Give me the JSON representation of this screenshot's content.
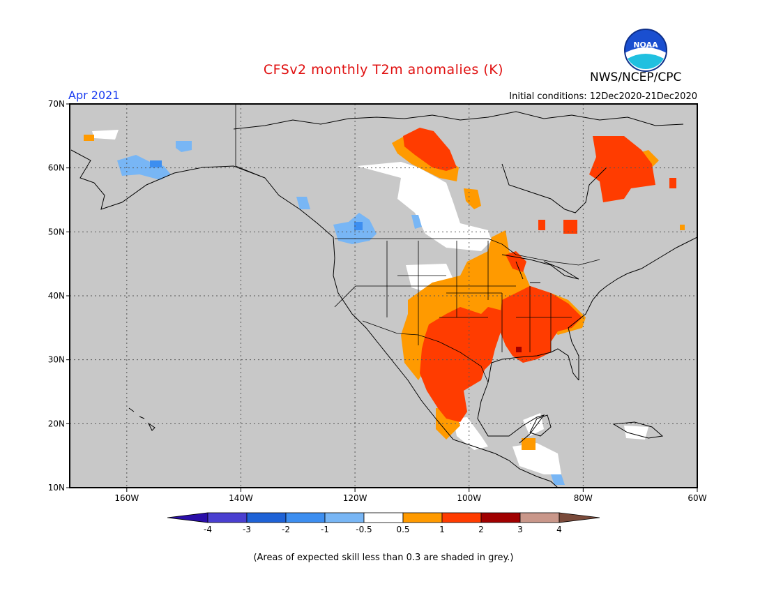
{
  "title": "CFSv2 monthly T2m anomalies (K)",
  "agency": "NWS/NCEP/CPC",
  "logo_text": "NOAA",
  "period": "Apr 2021",
  "initial_conditions": "Initial conditions: 12Dec2020-21Dec2020",
  "footnote": "(Areas of expected skill less than 0.3 are shaded in grey.)",
  "map": {
    "lon_range": [
      -170,
      -60
    ],
    "lat_range": [
      10,
      70
    ],
    "lon_ticks": [
      {
        "value": -160,
        "label": "160W"
      },
      {
        "value": -140,
        "label": "140W"
      },
      {
        "value": -120,
        "label": "120W"
      },
      {
        "value": -100,
        "label": "100W"
      },
      {
        "value": -80,
        "label": "80W"
      },
      {
        "value": -60,
        "label": "60W"
      }
    ],
    "lat_ticks": [
      {
        "value": 70,
        "label": "70N"
      },
      {
        "value": 60,
        "label": "60N"
      },
      {
        "value": 50,
        "label": "50N"
      },
      {
        "value": 40,
        "label": "40N"
      },
      {
        "value": 30,
        "label": "30N"
      },
      {
        "value": 20,
        "label": "20N"
      },
      {
        "value": 10,
        "label": "10N"
      }
    ],
    "low_skill_color": "#c8c8c8",
    "grid": "dotted"
  },
  "colorbar": {
    "labels": [
      "-4",
      "-3",
      "-2",
      "-1",
      "-0.5",
      "0.5",
      "1",
      "2",
      "3",
      "4"
    ],
    "colors": [
      "#2a0ea8",
      "#4a3fd0",
      "#1e62d6",
      "#3d8ef0",
      "#78b6f5",
      "#ffffff",
      "#ff9a00",
      "#ff3c00",
      "#a00000",
      "#c9978a",
      "#7a4a3a"
    ]
  },
  "anomaly_regions": [
    {
      "name": "Southern Plains",
      "category": "1 to 2",
      "color": "#ff3c00"
    },
    {
      "name": "Southeast",
      "category": "1 to 2",
      "color": "#ff3c00"
    },
    {
      "name": "Central US",
      "category": "0.5 to 1",
      "color": "#ff9a00"
    },
    {
      "name": "Northern Canada",
      "category": "1 to 2",
      "color": "#ff3c00"
    },
    {
      "name": "Quebec / Labrador",
      "category": "1 to 2",
      "color": "#ff3c00"
    },
    {
      "name": "Mexico",
      "category": "1 to 2",
      "color": "#ff3c00"
    },
    {
      "name": "Pacific Northwest",
      "category": "-1 to -0.5",
      "color": "#78b6f5"
    },
    {
      "name": "Alaska",
      "category": "-1 to -0.5",
      "color": "#78b6f5"
    }
  ]
}
